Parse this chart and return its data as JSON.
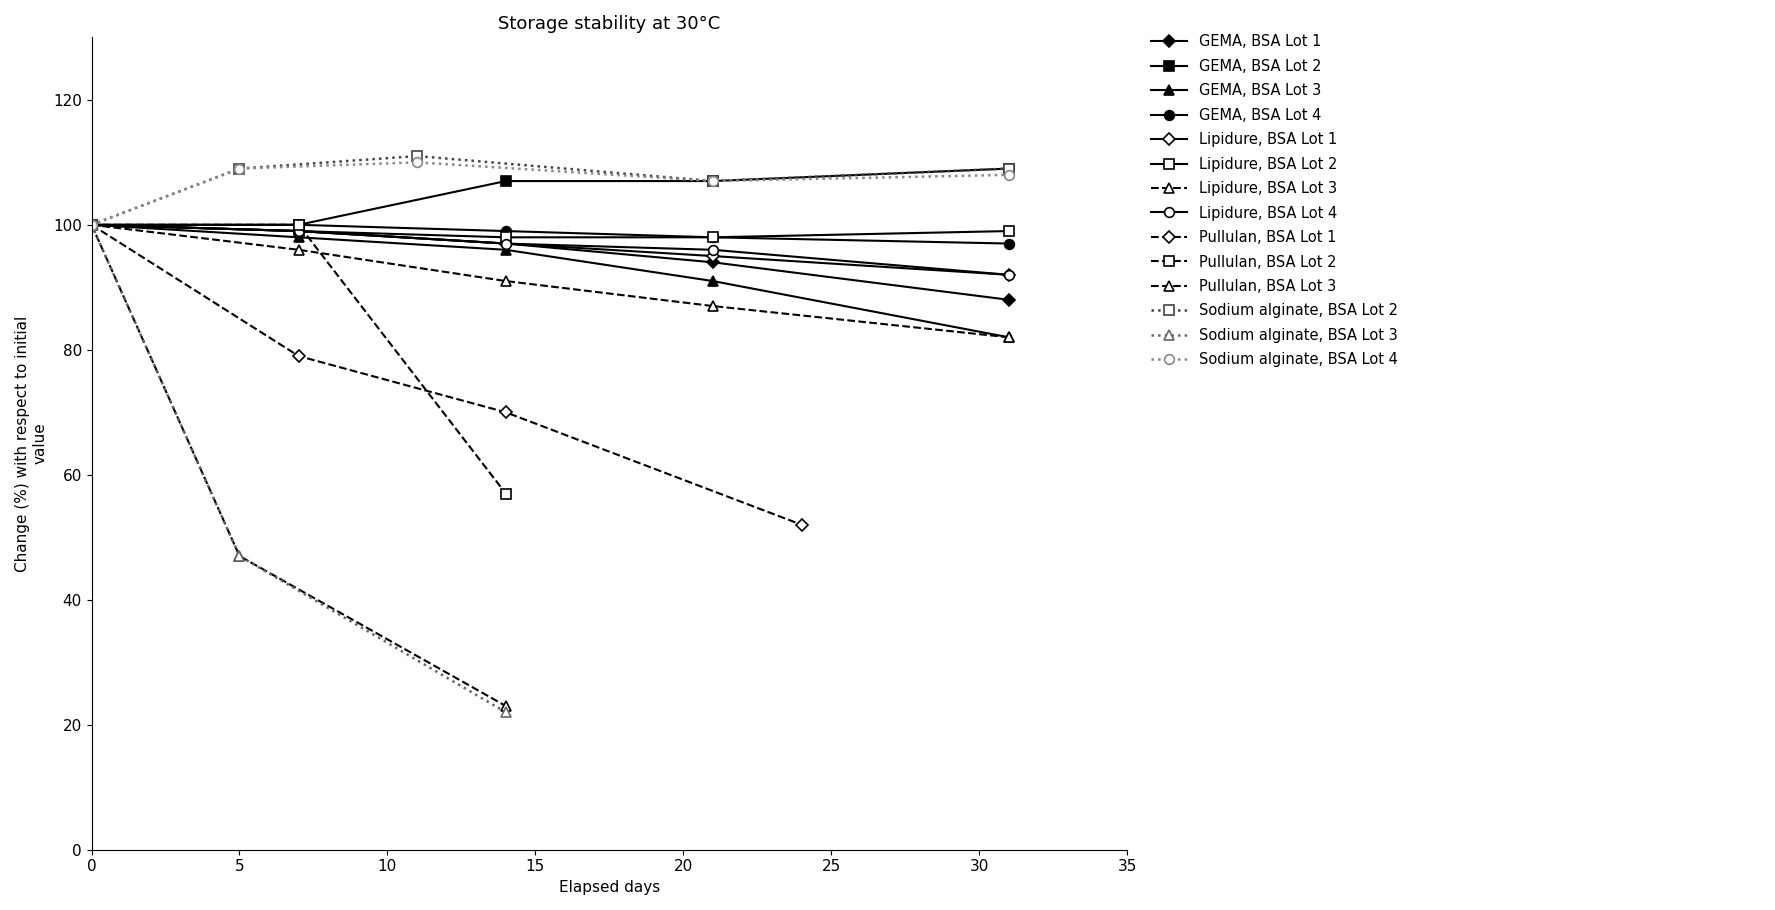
{
  "title": "Storage stability at 30°C",
  "xlabel": "Elapsed days",
  "ylabel": "Change (%) with respect to initial\nvalue",
  "xlim": [
    0,
    35
  ],
  "ylim": [
    0,
    130
  ],
  "yticks": [
    0,
    20,
    40,
    60,
    80,
    100,
    120
  ],
  "xticks": [
    0,
    5,
    10,
    15,
    20,
    25,
    30,
    35
  ],
  "series": [
    {
      "label": "GEMA, BSA Lot 1",
      "x": [
        0,
        7,
        14,
        21,
        31
      ],
      "y": [
        100,
        99,
        97,
        94,
        88
      ],
      "color": "#000000",
      "linestyle": "-",
      "marker": "D",
      "markersize": 6,
      "linewidth": 1.5,
      "mfc": "black",
      "mec": "black"
    },
    {
      "label": "GEMA, BSA Lot 2",
      "x": [
        0,
        7,
        14,
        21,
        31
      ],
      "y": [
        100,
        100,
        107,
        107,
        109
      ],
      "color": "#000000",
      "linestyle": "-",
      "marker": "s",
      "markersize": 7,
      "linewidth": 1.5,
      "mfc": "black",
      "mec": "black"
    },
    {
      "label": "GEMA, BSA Lot 3",
      "x": [
        0,
        7,
        14,
        21,
        31
      ],
      "y": [
        100,
        98,
        96,
        91,
        82
      ],
      "color": "#000000",
      "linestyle": "-",
      "marker": "^",
      "markersize": 7,
      "linewidth": 1.5,
      "mfc": "black",
      "mec": "black"
    },
    {
      "label": "GEMA, BSA Lot 4",
      "x": [
        0,
        7,
        14,
        21,
        31
      ],
      "y": [
        100,
        100,
        99,
        98,
        97
      ],
      "color": "#000000",
      "linestyle": "-",
      "marker": "o",
      "markersize": 7,
      "linewidth": 1.5,
      "mfc": "black",
      "mec": "black"
    },
    {
      "label": "Lipidure, BSA Lot 1",
      "x": [
        0,
        7,
        14,
        21,
        31
      ],
      "y": [
        100,
        99,
        97,
        95,
        92
      ],
      "color": "#000000",
      "linestyle": "-",
      "marker": "D",
      "markersize": 6,
      "linewidth": 1.5,
      "mfc": "white",
      "mec": "black"
    },
    {
      "label": "Lipidure, BSA Lot 2",
      "x": [
        0,
        7,
        14,
        21,
        31
      ],
      "y": [
        100,
        99,
        98,
        98,
        99
      ],
      "color": "#000000",
      "linestyle": "-",
      "marker": "s",
      "markersize": 7,
      "linewidth": 1.5,
      "mfc": "white",
      "mec": "black"
    },
    {
      "label": "Lipidure, BSA Lot 3",
      "x": [
        0,
        7,
        14,
        21,
        31
      ],
      "y": [
        100,
        96,
        91,
        87,
        82
      ],
      "color": "#000000",
      "linestyle": "--",
      "marker": "^",
      "markersize": 7,
      "linewidth": 1.5,
      "mfc": "white",
      "mec": "black"
    },
    {
      "label": "Lipidure, BSA Lot 4",
      "x": [
        0,
        7,
        14,
        21,
        31
      ],
      "y": [
        100,
        99,
        97,
        96,
        92
      ],
      "color": "#000000",
      "linestyle": "-",
      "marker": "o",
      "markersize": 7,
      "linewidth": 1.5,
      "mfc": "white",
      "mec": "black"
    },
    {
      "label": "Pullulan, BSA Lot 1",
      "x": [
        0,
        7,
        14,
        24
      ],
      "y": [
        100,
        79,
        70,
        52
      ],
      "color": "#000000",
      "linestyle": "--",
      "marker": "D",
      "markersize": 6,
      "linewidth": 1.5,
      "mfc": "white",
      "mec": "black",
      "hatch_marker": true
    },
    {
      "label": "Pullulan, BSA Lot 2",
      "x": [
        0,
        7,
        14
      ],
      "y": [
        100,
        100,
        57
      ],
      "color": "#000000",
      "linestyle": "--",
      "marker": "s",
      "markersize": 7,
      "linewidth": 1.5,
      "mfc": "white",
      "mec": "black",
      "hatch_marker": true
    },
    {
      "label": "Pullulan, BSA Lot 3",
      "x": [
        0,
        5,
        14
      ],
      "y": [
        100,
        47,
        23
      ],
      "color": "#000000",
      "linestyle": "--",
      "marker": "^",
      "markersize": 7,
      "linewidth": 1.5,
      "mfc": "white",
      "mec": "black",
      "hatch_marker": true
    },
    {
      "label": "Sodium alginate, BSA Lot 2",
      "x": [
        0,
        5,
        11,
        21,
        31
      ],
      "y": [
        100,
        109,
        111,
        107,
        109
      ],
      "color": "#444444",
      "linestyle": ":",
      "marker": "s",
      "markersize": 7,
      "linewidth": 1.8,
      "mfc": "white",
      "mec": "#444444",
      "hatch_marker": true
    },
    {
      "label": "Sodium alginate, BSA Lot 3",
      "x": [
        0,
        5,
        14
      ],
      "y": [
        100,
        47,
        22
      ],
      "color": "#666666",
      "linestyle": ":",
      "marker": "^",
      "markersize": 7,
      "linewidth": 1.8,
      "mfc": "white",
      "mec": "#666666",
      "hatch_marker": true
    },
    {
      "label": "Sodium alginate, BSA Lot 4",
      "x": [
        0,
        5,
        11,
        21,
        31
      ],
      "y": [
        100,
        109,
        110,
        107,
        108
      ],
      "color": "#888888",
      "linestyle": ":",
      "marker": "o",
      "markersize": 7,
      "linewidth": 1.8,
      "mfc": "white",
      "mec": "#888888",
      "hatch_marker": true
    }
  ],
  "background_color": "#ffffff",
  "title_fontsize": 13,
  "label_fontsize": 11,
  "tick_fontsize": 11,
  "legend_fontsize": 10.5
}
